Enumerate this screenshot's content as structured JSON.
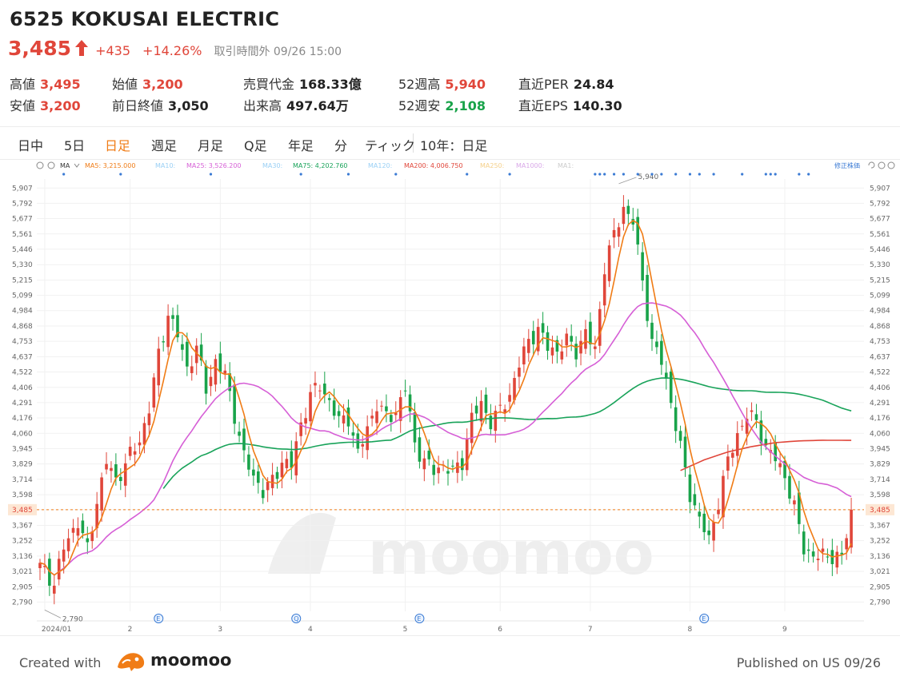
{
  "header": {
    "title": "6525 KOKUSAI ELECTRIC",
    "price": "3,485",
    "change": "+435",
    "change_pct": "+14.26%",
    "status": "取引時間外 09/26 15:00",
    "colors": {
      "up": "#e0463a",
      "down": "#19a34a"
    }
  },
  "stats": [
    {
      "label": "高値",
      "value": "3,495",
      "color": "red"
    },
    {
      "label": "始値",
      "value": "3,200",
      "color": "red"
    },
    {
      "label": "売買代金",
      "value": "168.33億",
      "color": "dark"
    },
    {
      "label": "52週高",
      "value": "5,940",
      "color": "red"
    },
    {
      "label": "直近PER",
      "value": "24.84",
      "color": "dark"
    },
    {
      "label": "安値",
      "value": "3,200",
      "color": "red"
    },
    {
      "label": "前日終値",
      "value": "3,050",
      "color": "dark"
    },
    {
      "label": "出来高",
      "value": "497.64万",
      "color": "dark"
    },
    {
      "label": "52週安",
      "value": "2,108",
      "color": "green"
    },
    {
      "label": "直近EPS",
      "value": "140.30",
      "color": "dark"
    }
  ],
  "tabs": [
    {
      "label": "日中"
    },
    {
      "label": "5日"
    },
    {
      "label": "日足",
      "active": true
    },
    {
      "label": "週足"
    },
    {
      "label": "月足"
    },
    {
      "label": "Q足"
    },
    {
      "label": "年足"
    },
    {
      "label": "分"
    },
    {
      "label": "ティック"
    },
    {
      "label": "10年：日足"
    }
  ],
  "toolbar": {
    "ma_label": "MA",
    "ma_items": [
      {
        "text": "MA5: 3,215.000",
        "color": "#f07c16"
      },
      {
        "text": "MA10:",
        "color": "#9ad0f5"
      },
      {
        "text": "MA25: 3,526.200",
        "color": "#d65fd6"
      },
      {
        "text": "MA30:",
        "color": "#9ad0f5"
      },
      {
        "text": "MA75: 4,202.760",
        "color": "#19a35a"
      },
      {
        "text": "MA120:",
        "color": "#9ad0f5"
      },
      {
        "text": "MA200: 4,006.750",
        "color": "#e0463a"
      },
      {
        "text": "MA250:",
        "color": "#f5d08a"
      },
      {
        "text": "MA1000:",
        "color": "#d9a8e8"
      },
      {
        "text": "MA1:",
        "color": "#cccccc"
      }
    ],
    "adjusted_label": "修正株価"
  },
  "chart_data": {
    "type": "candlestick",
    "y_ticks": [
      "5,907",
      "5,792",
      "5,677",
      "5,561",
      "5,446",
      "5,330",
      "5,215",
      "5,099",
      "4,984",
      "4,868",
      "4,753",
      "4,637",
      "4,522",
      "4,406",
      "4,291",
      "4,176",
      "4,060",
      "3,945",
      "3,829",
      "3,714",
      "3,598",
      "3,485",
      "3,367",
      "3,252",
      "3,136",
      "3,021",
      "2,905",
      "2,790"
    ],
    "ylim": [
      2720,
      5975
    ],
    "x_ticks": [
      {
        "label": "2024/01",
        "day": 1
      },
      {
        "label": "2",
        "day": 19
      },
      {
        "label": "3",
        "day": 38
      },
      {
        "label": "4",
        "day": 57
      },
      {
        "label": "5",
        "day": 77
      },
      {
        "label": "6",
        "day": 97
      },
      {
        "label": "7",
        "day": 116
      },
      {
        "label": "8",
        "day": 137
      },
      {
        "label": "9",
        "day": 157
      }
    ],
    "current_price": {
      "value": 3485,
      "label": "3,485"
    },
    "max_annotation": {
      "label": "5,940",
      "value": 5940,
      "day": 122
    },
    "min_annotation": {
      "label": "2,790",
      "value": 2790,
      "day": 1
    },
    "event_markers": [
      {
        "day": 25,
        "symbol": "E"
      },
      {
        "day": 54,
        "symbol": "Q"
      },
      {
        "day": 80,
        "symbol": "E"
      },
      {
        "day": 140,
        "symbol": "E"
      }
    ],
    "series": [
      {
        "name": "MA5",
        "color": "#f07c16"
      },
      {
        "name": "MA25",
        "color": "#d65fd6"
      },
      {
        "name": "MA75",
        "color": "#19a35a"
      },
      {
        "name": "MA200",
        "color": "#e0463a"
      }
    ],
    "anchors": [
      [
        0,
        3060
      ],
      [
        3,
        2930
      ],
      [
        5,
        3200
      ],
      [
        8,
        3400
      ],
      [
        10,
        3180
      ],
      [
        12,
        3550
      ],
      [
        14,
        3850
      ],
      [
        16,
        3700
      ],
      [
        19,
        3900
      ],
      [
        21,
        4000
      ],
      [
        23,
        4250
      ],
      [
        25,
        4650
      ],
      [
        27,
        4960
      ],
      [
        29,
        4800
      ],
      [
        31,
        4550
      ],
      [
        33,
        4700
      ],
      [
        35,
        4400
      ],
      [
        37,
        4600
      ],
      [
        39,
        4500
      ],
      [
        41,
        4200
      ],
      [
        43,
        3880
      ],
      [
        45,
        3740
      ],
      [
        47,
        3620
      ],
      [
        49,
        3700
      ],
      [
        51,
        3850
      ],
      [
        53,
        3820
      ],
      [
        55,
        4130
      ],
      [
        57,
        4350
      ],
      [
        59,
        4420
      ],
      [
        61,
        4300
      ],
      [
        63,
        4150
      ],
      [
        65,
        4180
      ],
      [
        67,
        3900
      ],
      [
        69,
        4100
      ],
      [
        71,
        4280
      ],
      [
        73,
        4180
      ],
      [
        75,
        4220
      ],
      [
        77,
        4400
      ],
      [
        79,
        3980
      ],
      [
        81,
        3850
      ],
      [
        83,
        3780
      ],
      [
        85,
        3820
      ],
      [
        87,
        3770
      ],
      [
        89,
        3850
      ],
      [
        91,
        4180
      ],
      [
        93,
        4280
      ],
      [
        95,
        4150
      ],
      [
        97,
        4230
      ],
      [
        99,
        4350
      ],
      [
        101,
        4580
      ],
      [
        103,
        4760
      ],
      [
        105,
        4840
      ],
      [
        107,
        4710
      ],
      [
        109,
        4680
      ],
      [
        111,
        4760
      ],
      [
        113,
        4680
      ],
      [
        115,
        4820
      ],
      [
        117,
        4680
      ],
      [
        119,
        5320
      ],
      [
        121,
        5550
      ],
      [
        123,
        5760
      ],
      [
        125,
        5660
      ],
      [
        127,
        5200
      ],
      [
        129,
        4750
      ],
      [
        131,
        4600
      ],
      [
        133,
        4300
      ],
      [
        135,
        3950
      ],
      [
        137,
        3600
      ],
      [
        139,
        3420
      ],
      [
        141,
        3250
      ],
      [
        143,
        3550
      ],
      [
        145,
        3850
      ],
      [
        147,
        4050
      ],
      [
        149,
        4200
      ],
      [
        151,
        4150
      ],
      [
        153,
        3950
      ],
      [
        155,
        3870
      ],
      [
        157,
        3740
      ],
      [
        159,
        3500
      ],
      [
        161,
        3200
      ],
      [
        163,
        3130
      ],
      [
        165,
        3140
      ],
      [
        167,
        3140
      ],
      [
        169,
        3120
      ],
      [
        171,
        3480
      ]
    ],
    "ma200_anchors": [
      [
        135,
        3780
      ],
      [
        140,
        3860
      ],
      [
        145,
        3920
      ],
      [
        150,
        3960
      ],
      [
        155,
        3990
      ],
      [
        160,
        4003
      ],
      [
        165,
        4008
      ],
      [
        171,
        4007
      ]
    ],
    "y_label": "",
    "x_label": ""
  },
  "footer": {
    "created": "Created with",
    "logo": "moomoo",
    "published": "Published on US 09/26"
  }
}
